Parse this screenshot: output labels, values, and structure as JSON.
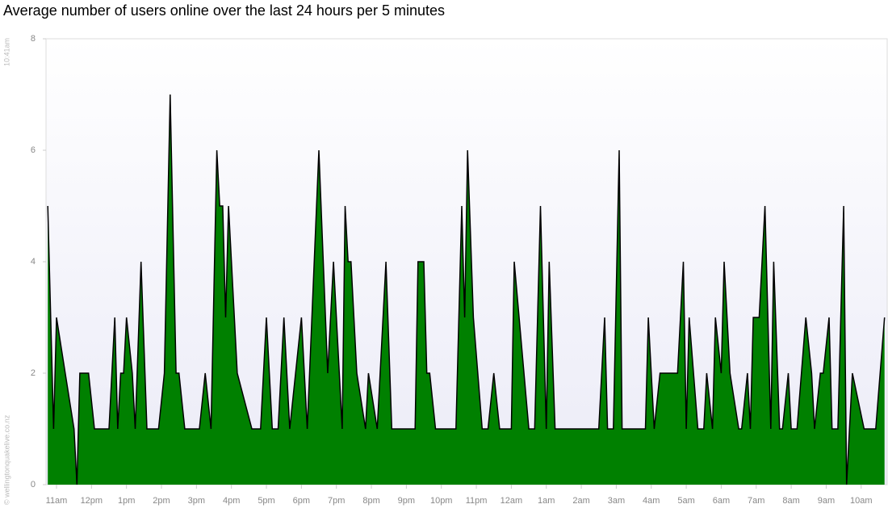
{
  "chart_data": {
    "type": "area",
    "title": "Average number of users online over the last 24 hours per 5 minutes",
    "timestamp": "10:41am",
    "credit": "© wellingtonquakelive.co.nz",
    "color": "#008000",
    "line_color": "#000000",
    "x": [
      645,
      655,
      660,
      675,
      690,
      695,
      700,
      715,
      725,
      750,
      760,
      765,
      770,
      775,
      780,
      790,
      795,
      805,
      815,
      835,
      845,
      855,
      865,
      870,
      880,
      905,
      915,
      925,
      935,
      940,
      945,
      950,
      955,
      970,
      995,
      1010,
      1020,
      1030,
      1040,
      1050,
      1060,
      1080,
      1090,
      1110,
      1125,
      1135,
      1150,
      1155,
      1160,
      1165,
      1175,
      1190,
      1195,
      1210,
      1220,
      1225,
      1235,
      1275,
      1280,
      1290,
      1295,
      1300,
      1310,
      1345,
      1355,
      1360,
      1365,
      1375,
      1390,
      1400,
      1410,
      1420,
      1440,
      1445,
      1470,
      1480,
      1490,
      1500,
      1505,
      1515,
      1590,
      1600,
      1605,
      1615,
      1625,
      1630,
      1670,
      1675,
      1685,
      1695,
      1725,
      1735,
      1740,
      1745,
      1760,
      1770,
      1775,
      1785,
      1790,
      1800,
      1805,
      1815,
      1830,
      1835,
      1845,
      1850,
      1855,
      1865,
      1875,
      1885,
      1890,
      1900,
      1905,
      1915,
      1920,
      1930,
      1945,
      1955,
      1960,
      1970,
      1975,
      1985,
      1990,
      2000,
      2010,
      2015,
      2025,
      2045,
      2065,
      2080
    ],
    "values": [
      5,
      1,
      3,
      2,
      1,
      0,
      2,
      2,
      1,
      1,
      3,
      1,
      2,
      2,
      3,
      2,
      1,
      4,
      1,
      1,
      2,
      7,
      2,
      2,
      1,
      1,
      2,
      1,
      6,
      5,
      5,
      3,
      5,
      2,
      1,
      1,
      3,
      1,
      1,
      3,
      1,
      3,
      1,
      6,
      2,
      4,
      1,
      5,
      4,
      4,
      2,
      1,
      2,
      1,
      3,
      4,
      1,
      1,
      4,
      4,
      2,
      2,
      1,
      1,
      5,
      3,
      6,
      3,
      1,
      1,
      2,
      1,
      1,
      4,
      1,
      1,
      5,
      1,
      4,
      1,
      1,
      3,
      1,
      1,
      6,
      1,
      1,
      3,
      1,
      2,
      2,
      4,
      1,
      3,
      1,
      1,
      2,
      1,
      3,
      2,
      4,
      2,
      1,
      1,
      2,
      1,
      3,
      3,
      5,
      1,
      4,
      1,
      1,
      2,
      1,
      1,
      3,
      2,
      1,
      2,
      2,
      3,
      1,
      1,
      5,
      0,
      2,
      1,
      1,
      3
    ],
    "xlim": [
      642,
      2086
    ],
    "xticks": [
      {
        "value": 660,
        "label": "11am"
      },
      {
        "value": 720,
        "label": "12pm"
      },
      {
        "value": 780,
        "label": "1pm"
      },
      {
        "value": 840,
        "label": "2pm"
      },
      {
        "value": 900,
        "label": "3pm"
      },
      {
        "value": 960,
        "label": "4pm"
      },
      {
        "value": 1020,
        "label": "5pm"
      },
      {
        "value": 1080,
        "label": "6pm"
      },
      {
        "value": 1140,
        "label": "7pm"
      },
      {
        "value": 1200,
        "label": "8pm"
      },
      {
        "value": 1260,
        "label": "9pm"
      },
      {
        "value": 1320,
        "label": "10pm"
      },
      {
        "value": 1380,
        "label": "11pm"
      },
      {
        "value": 1440,
        "label": "12am"
      },
      {
        "value": 1500,
        "label": "1am"
      },
      {
        "value": 1560,
        "label": "2am"
      },
      {
        "value": 1620,
        "label": "3am"
      },
      {
        "value": 1680,
        "label": "4am"
      },
      {
        "value": 1740,
        "label": "5am"
      },
      {
        "value": 1800,
        "label": "6am"
      },
      {
        "value": 1860,
        "label": "7am"
      },
      {
        "value": 1920,
        "label": "8am"
      },
      {
        "value": 1980,
        "label": "9am"
      },
      {
        "value": 2040,
        "label": "10am"
      }
    ],
    "ylim": [
      0,
      8
    ],
    "yticks": [
      0,
      2,
      4,
      6,
      8
    ]
  }
}
